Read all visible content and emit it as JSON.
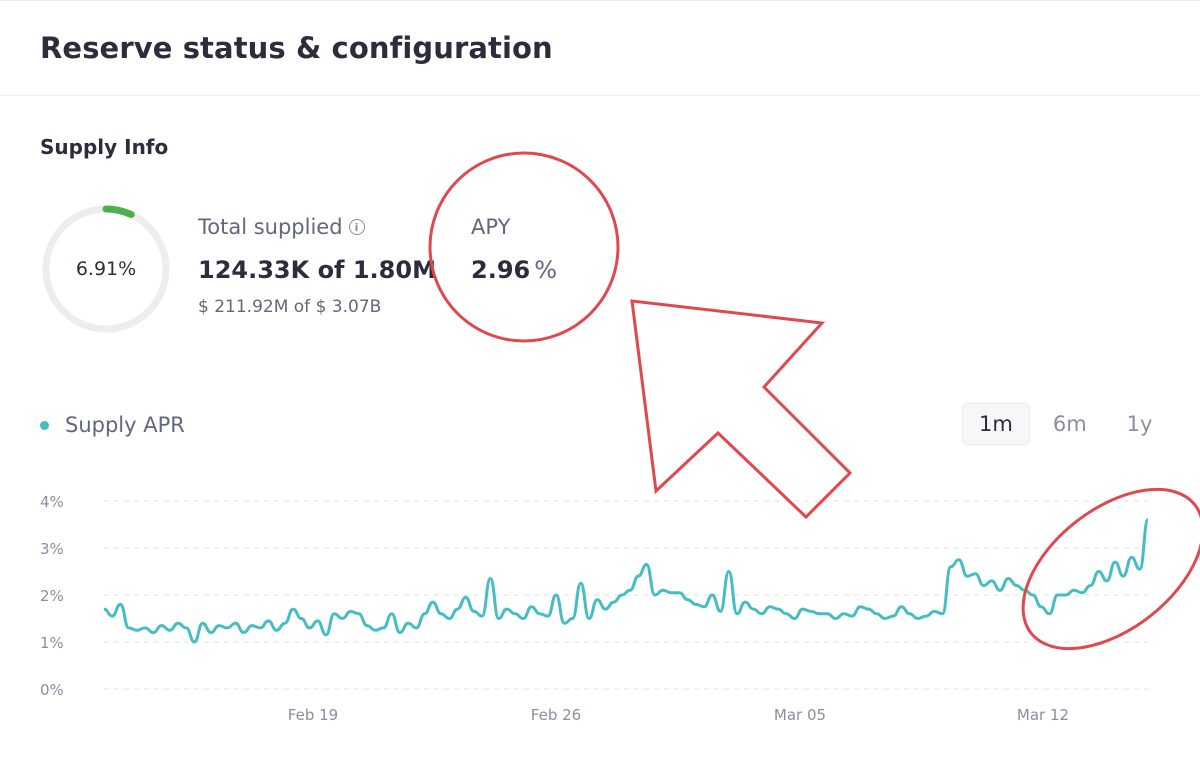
{
  "page": {
    "title": "Reserve status & configuration"
  },
  "supply_info": {
    "section_title": "Supply Info",
    "utilization": {
      "percent_label": "6.91%",
      "fraction": 0.0691
    },
    "total_supplied": {
      "label": "Total supplied",
      "value": "124.33K of 1.80M",
      "usd": "$ 211.92M of $ 3.07B"
    },
    "apy": {
      "label": "APY",
      "value": "2.96",
      "unit": "%"
    }
  },
  "chart_section": {
    "legend_label": "Supply APR",
    "ranges": [
      "1m",
      "6m",
      "1y"
    ],
    "active_range": "1m"
  },
  "colors": {
    "series": "#46bcc3",
    "ring_fill": "#4caf50",
    "annotation": "#e0484f"
  },
  "annotations": {
    "icons": [
      "red-circle-annotation",
      "red-arrow-annotation",
      "red-ellipse-annotation"
    ]
  },
  "chart_data": {
    "type": "line",
    "title": "",
    "xlabel": "",
    "ylabel": "",
    "ylim": [
      0,
      4
    ],
    "y_ticks": [
      "0%",
      "1%",
      "2%",
      "3%",
      "4%"
    ],
    "x_ticks": [
      "Feb 19",
      "Feb 26",
      "Mar 05",
      "Mar 12"
    ],
    "grid": true,
    "series": [
      {
        "name": "Supply APR",
        "values": [
          1.7,
          1.55,
          1.8,
          1.3,
          1.25,
          1.3,
          1.2,
          1.35,
          1.25,
          1.4,
          1.3,
          1.0,
          1.4,
          1.2,
          1.35,
          1.3,
          1.4,
          1.2,
          1.35,
          1.3,
          1.45,
          1.25,
          1.4,
          1.7,
          1.5,
          1.3,
          1.45,
          1.15,
          1.6,
          1.5,
          1.65,
          1.6,
          1.35,
          1.25,
          1.3,
          1.6,
          1.2,
          1.4,
          1.3,
          1.6,
          1.85,
          1.6,
          1.5,
          1.7,
          1.95,
          1.65,
          1.55,
          2.35,
          1.5,
          1.7,
          1.6,
          1.5,
          1.75,
          1.6,
          1.55,
          2.0,
          1.4,
          1.5,
          2.25,
          1.5,
          1.9,
          1.7,
          1.85,
          2.0,
          2.1,
          2.4,
          2.65,
          2.0,
          2.1,
          2.05,
          2.05,
          1.9,
          1.8,
          1.75,
          2.0,
          1.65,
          2.5,
          1.6,
          1.85,
          1.7,
          1.6,
          1.75,
          1.7,
          1.6,
          1.5,
          1.7,
          1.65,
          1.6,
          1.6,
          1.5,
          1.6,
          1.55,
          1.75,
          1.7,
          1.6,
          1.5,
          1.55,
          1.75,
          1.6,
          1.5,
          1.55,
          1.65,
          1.6,
          2.6,
          2.75,
          2.4,
          2.45,
          2.2,
          2.3,
          2.1,
          2.35,
          2.2,
          2.1,
          2.0,
          1.75,
          1.6,
          2.0,
          2.0,
          2.1,
          2.05,
          2.2,
          2.5,
          2.3,
          2.7,
          2.4,
          2.8,
          2.55,
          3.6
        ]
      }
    ]
  }
}
